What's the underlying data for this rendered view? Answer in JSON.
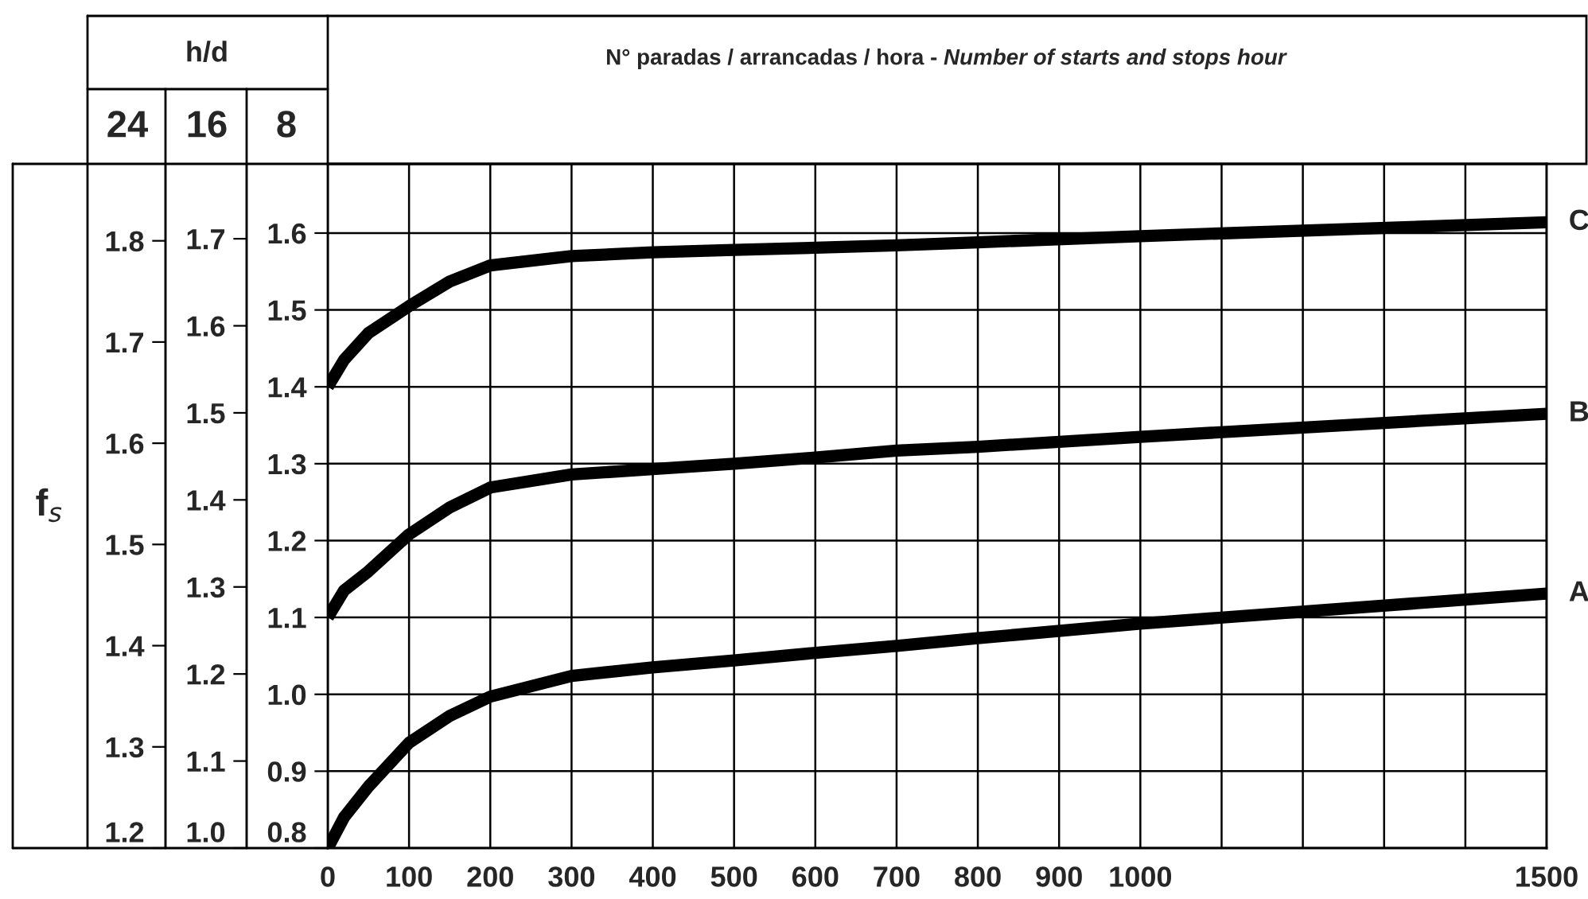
{
  "chart_data": {
    "type": "line",
    "title": "N° paradas / arrancadas / hora -",
    "subtitle": "Number of starts and stops hour",
    "ylabel": "8",
    "y2label": "16",
    "y3label": "24",
    "annotations": [
      "h/d",
      "f$_{s}$"
    ],
    "x": [
      0,
      20,
      50,
      100,
      150,
      200,
      300,
      400,
      500,
      600,
      700,
      800,
      1000,
      1500
    ],
    "series": [
      {
        "name": "A",
        "color": "#000000",
        "values": [
          0.8,
          0.84,
          0.88,
          0.937,
          0.972,
          0.997,
          1.024,
          1.035,
          1.044,
          1.054,
          1.063,
          1.073,
          1.092,
          1.131
        ]
      },
      {
        "name": "B",
        "color": "#000000",
        "values": [
          1.1,
          1.135,
          1.16,
          1.208,
          1.243,
          1.269,
          1.286,
          1.293,
          1.3,
          1.308,
          1.317,
          1.322,
          1.335,
          1.365
        ]
      },
      {
        "name": "C",
        "color": "#000000",
        "values": [
          1.4,
          1.435,
          1.47,
          1.505,
          1.537,
          1.558,
          1.57,
          1.575,
          1.578,
          1.581,
          1.584,
          1.588,
          1.596,
          1.614
        ]
      }
    ],
    "xlim": [
      0,
      1500
    ],
    "xticks": [
      0,
      100,
      200,
      300,
      400,
      500,
      600,
      700,
      800,
      900,
      1000,
      {
        "value": 1100,
        "label": null
      },
      {
        "value": 1200,
        "label": null
      },
      {
        "value": 1300,
        "label": null
      },
      {
        "value": 1400,
        "label": null
      },
      1500
    ],
    "ylim": [
      0.8,
      1.69
    ],
    "yticks": [
      0.8,
      0.9,
      {
        "value": 1.0,
        "label": "1.0"
      },
      1.1,
      1.2,
      1.3,
      1.4,
      1.5,
      1.6
    ],
    "y2lim": [
      1.0,
      1.786
    ],
    "y2ticks": [
      {
        "value": 1.0,
        "label": "1.0"
      },
      1.1,
      1.2,
      1.3,
      1.4,
      1.5,
      1.6,
      1.7
    ],
    "y3lim": [
      1.2,
      1.876
    ],
    "y3ticks": [
      1.2,
      1.3,
      1.4,
      1.5,
      1.6,
      1.7,
      1.8
    ],
    "grid": true,
    "legend": false,
    "marker": "none",
    "line_style": "solid"
  }
}
